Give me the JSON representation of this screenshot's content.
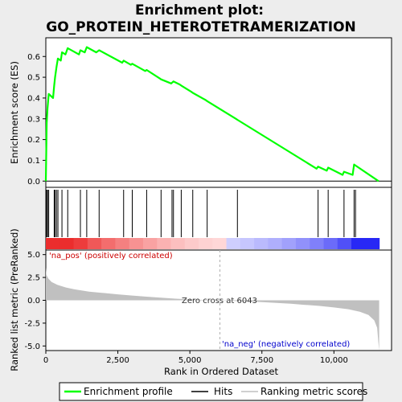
{
  "title_line1": "Enrichment plot:",
  "title_line2": "GO_PROTEIN_HETEROTETRAMERIZATION",
  "colors": {
    "profile": "#00ff00",
    "hits": "#000000",
    "metric_fill": "#c0c0c0",
    "pos_label": "#cc0000",
    "neg_label": "#0000cc",
    "zero_line": "#b0b0b0"
  },
  "legend": {
    "profile": "Enrichment profile",
    "hits": "Hits",
    "metric": "Ranking metric scores"
  },
  "chart_data": [
    {
      "type": "line",
      "name": "enrichment-profile",
      "ylabel": "Enrichment score (ES)",
      "xlim": [
        0,
        12000
      ],
      "ylim": [
        -0.03,
        0.69
      ],
      "yticks": [
        0.0,
        0.1,
        0.2,
        0.3,
        0.4,
        0.5,
        0.6
      ],
      "ytick_labels": [
        "0.0",
        "0.1",
        "0.2",
        "0.3",
        "0.4",
        "0.5",
        "0.6"
      ],
      "points": [
        [
          0,
          0.0
        ],
        [
          30,
          0.28
        ],
        [
          60,
          0.35
        ],
        [
          100,
          0.42
        ],
        [
          250,
          0.4
        ],
        [
          290,
          0.46
        ],
        [
          320,
          0.5
        ],
        [
          370,
          0.55
        ],
        [
          420,
          0.59
        ],
        [
          520,
          0.58
        ],
        [
          560,
          0.62
        ],
        [
          680,
          0.61
        ],
        [
          760,
          0.64
        ],
        [
          1150,
          0.61
        ],
        [
          1200,
          0.63
        ],
        [
          1350,
          0.62
        ],
        [
          1420,
          0.645
        ],
        [
          1750,
          0.62
        ],
        [
          1850,
          0.63
        ],
        [
          2650,
          0.57
        ],
        [
          2700,
          0.58
        ],
        [
          2950,
          0.56
        ],
        [
          3000,
          0.565
        ],
        [
          3450,
          0.53
        ],
        [
          3500,
          0.535
        ],
        [
          3950,
          0.495
        ],
        [
          4000,
          0.49
        ],
        [
          4350,
          0.47
        ],
        [
          4430,
          0.48
        ],
        [
          4650,
          0.465
        ],
        [
          4700,
          0.46
        ],
        [
          5050,
          0.43
        ],
        [
          5100,
          0.425
        ],
        [
          5550,
          0.39
        ],
        [
          5600,
          0.385
        ],
        [
          6600,
          0.3
        ],
        [
          6650,
          0.295
        ],
        [
          9400,
          0.06
        ],
        [
          9450,
          0.07
        ],
        [
          9750,
          0.05
        ],
        [
          9800,
          0.065
        ],
        [
          10300,
          0.03
        ],
        [
          10350,
          0.045
        ],
        [
          10650,
          0.03
        ],
        [
          10700,
          0.08
        ],
        [
          11550,
          0.0
        ]
      ]
    },
    {
      "type": "scatter",
      "name": "hits",
      "x": [
        30,
        60,
        100,
        290,
        320,
        370,
        420,
        560,
        760,
        1200,
        1420,
        1850,
        2700,
        3000,
        3500,
        4000,
        4380,
        4430,
        4700,
        5100,
        5600,
        6650,
        9450,
        9800,
        10350,
        10700,
        10750
      ],
      "heatmap_labels": [
        "na_pos",
        "na_neg"
      ]
    },
    {
      "type": "area",
      "name": "ranking-metric",
      "ylabel": "Ranked list metric (PreRanked)",
      "xlabel": "Rank in Ordered Dataset",
      "xlim": [
        0,
        12000
      ],
      "ylim": [
        -5.5,
        5.5
      ],
      "xticks": [
        0,
        2500,
        5000,
        7500,
        10000
      ],
      "xtick_labels": [
        "0",
        "2,500",
        "5,000",
        "7,500",
        "10,000"
      ],
      "yticks": [
        5.0,
        2.5,
        0.0,
        -2.5,
        -5.0
      ],
      "ytick_labels": [
        "5.0",
        "2.5",
        "0.0",
        "-2.5",
        "-5.0"
      ],
      "points": [
        [
          0,
          3.6
        ],
        [
          20,
          2.8
        ],
        [
          80,
          2.4
        ],
        [
          200,
          2.0
        ],
        [
          400,
          1.7
        ],
        [
          700,
          1.4
        ],
        [
          1000,
          1.2
        ],
        [
          1500,
          0.95
        ],
        [
          2000,
          0.8
        ],
        [
          2500,
          0.65
        ],
        [
          3000,
          0.52
        ],
        [
          3500,
          0.4
        ],
        [
          4000,
          0.28
        ],
        [
          4500,
          0.18
        ],
        [
          5000,
          0.1
        ],
        [
          5500,
          0.04
        ],
        [
          6043,
          0.0
        ],
        [
          6500,
          -0.06
        ],
        [
          7000,
          -0.12
        ],
        [
          7500,
          -0.2
        ],
        [
          8000,
          -0.28
        ],
        [
          8500,
          -0.38
        ],
        [
          9000,
          -0.5
        ],
        [
          9500,
          -0.62
        ],
        [
          10000,
          -0.78
        ],
        [
          10500,
          -0.98
        ],
        [
          10900,
          -1.25
        ],
        [
          11200,
          -1.6
        ],
        [
          11400,
          -2.2
        ],
        [
          11500,
          -3.0
        ],
        [
          11540,
          -4.5
        ],
        [
          11570,
          -5.5
        ]
      ],
      "zero_cross": 6043,
      "zero_cross_label": "Zero cross at 6043",
      "pos_label": "'na_pos' (positively correlated)",
      "neg_label": "'na_neg' (negatively correlated)"
    }
  ]
}
